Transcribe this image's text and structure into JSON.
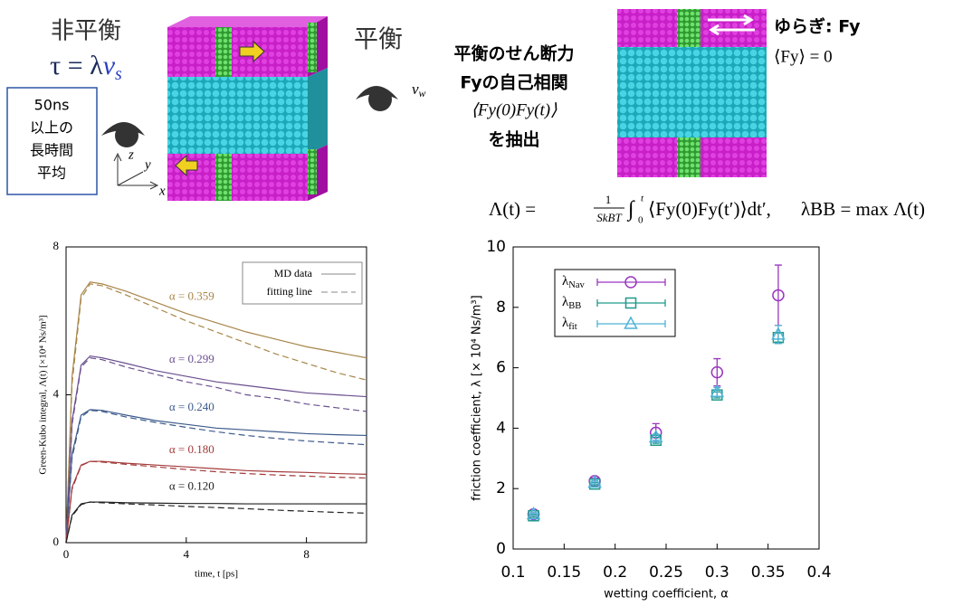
{
  "header": {
    "noneq": "非平衡",
    "tau": "τ = λ",
    "tau_v": "v",
    "tau_sub": "s",
    "box_lines": [
      "50ns",
      "以上の",
      "長時間",
      "平均"
    ],
    "axis_z": "z",
    "axis_y": "y",
    "axis_x": "x",
    "eq_label": "平衡",
    "steps": [
      "平衡のせん断力",
      "Fyの自己相関",
      "⟨Fy(0)Fy(t)⟩",
      "を抽出"
    ],
    "fluct": "ゆらぎ: Fy",
    "fluct_mean": "⟨Fy⟩ = 0",
    "formula_lhs": "Λ(t) =",
    "formula_num": "1",
    "formula_den": "SkBT",
    "formula_int": "∫",
    "formula_lower": "0",
    "formula_upper": "t",
    "formula_body": "⟨Fy(0)Fy(t′)⟩dt′,",
    "formula_rhs": "λBB = max Λ(t)",
    "vw": "vw"
  },
  "chart_data": [
    {
      "type": "line",
      "xlabel": "time, t [ps]",
      "ylabel": "Green-Kubo integral, Λ(t) [×10⁴ Ns/m³]",
      "xlim": [
        0,
        10
      ],
      "ylim": [
        0,
        8
      ],
      "xticks": [
        0,
        4,
        8
      ],
      "yticks": [
        0,
        4,
        8
      ],
      "legend": [
        {
          "label": "MD data",
          "style": "solid"
        },
        {
          "label": "fitting line",
          "style": "dashed"
        }
      ],
      "legend_position": "upper right",
      "x": [
        0,
        0.2,
        0.5,
        0.8,
        1.2,
        2,
        3,
        4,
        5,
        6,
        7,
        8,
        9,
        10
      ],
      "series": [
        {
          "label": "α = 0.359",
          "color": "#a8864a",
          "md": [
            0,
            4.5,
            6.7,
            7.05,
            7.0,
            6.8,
            6.5,
            6.2,
            5.95,
            5.7,
            5.5,
            5.3,
            5.15,
            5.0
          ],
          "fit": [
            0,
            4.3,
            6.6,
            7.0,
            6.95,
            6.7,
            6.35,
            6.0,
            5.7,
            5.4,
            5.1,
            4.85,
            4.6,
            4.4
          ]
        },
        {
          "label": "α = 0.299",
          "color": "#6a4f8e",
          "md": [
            0,
            3.3,
            4.8,
            5.05,
            5.0,
            4.85,
            4.65,
            4.5,
            4.35,
            4.25,
            4.15,
            4.05,
            4.0,
            3.95
          ],
          "fit": [
            0,
            3.2,
            4.75,
            5.0,
            4.95,
            4.75,
            4.55,
            4.35,
            4.2,
            4.0,
            3.9,
            3.75,
            3.65,
            3.55
          ]
        },
        {
          "label": "α = 0.240",
          "color": "#3d5a8c",
          "md": [
            0,
            2.4,
            3.45,
            3.6,
            3.58,
            3.45,
            3.3,
            3.2,
            3.1,
            3.05,
            3.0,
            2.95,
            2.92,
            2.9
          ],
          "fit": [
            0,
            2.3,
            3.4,
            3.58,
            3.55,
            3.4,
            3.25,
            3.12,
            3.0,
            2.9,
            2.82,
            2.75,
            2.7,
            2.65
          ]
        },
        {
          "label": "α = 0.180",
          "color": "#a33a3a",
          "md": [
            0,
            1.5,
            2.1,
            2.2,
            2.2,
            2.15,
            2.1,
            2.05,
            2.0,
            1.95,
            1.92,
            1.9,
            1.87,
            1.85
          ],
          "fit": [
            0,
            1.45,
            2.08,
            2.2,
            2.18,
            2.12,
            2.05,
            1.98,
            1.92,
            1.87,
            1.83,
            1.8,
            1.77,
            1.75
          ]
        },
        {
          "label": "α = 0.120",
          "color": "#222222",
          "md": [
            0,
            0.75,
            1.05,
            1.1,
            1.1,
            1.08,
            1.07,
            1.06,
            1.06,
            1.05,
            1.05,
            1.05,
            1.05,
            1.05
          ],
          "fit": [
            0,
            0.72,
            1.03,
            1.1,
            1.08,
            1.05,
            1.02,
            0.98,
            0.95,
            0.92,
            0.88,
            0.85,
            0.82,
            0.8
          ]
        }
      ]
    },
    {
      "type": "scatter",
      "xlabel": "wetting coefficient, α",
      "ylabel": "friction coefficient, λ [× 10⁴ Ns/m³]",
      "xlim": [
        0.1,
        0.4
      ],
      "ylim": [
        0,
        10
      ],
      "xticks": [
        0.1,
        0.15,
        0.2,
        0.25,
        0.3,
        0.35,
        0.4
      ],
      "yticks": [
        0,
        2,
        4,
        6,
        8,
        10
      ],
      "legend_position": "upper left",
      "x": [
        0.12,
        0.18,
        0.24,
        0.3,
        0.36
      ],
      "series": [
        {
          "name": "λNav",
          "color": "#9b35c0",
          "marker": "circle",
          "values": [
            1.15,
            2.25,
            3.85,
            5.85,
            8.4
          ],
          "errors": [
            0.05,
            0.1,
            0.3,
            0.45,
            1.0
          ]
        },
        {
          "name": "λBB",
          "color": "#1f9a8c",
          "marker": "square",
          "values": [
            1.1,
            2.15,
            3.6,
            5.1,
            7.0
          ],
          "errors": [
            0.05,
            0.05,
            0.1,
            0.1,
            0.15
          ]
        },
        {
          "name": "λfit",
          "color": "#4eb3d6",
          "marker": "triangle",
          "values": [
            1.15,
            2.2,
            3.7,
            5.2,
            7.1
          ],
          "errors": [
            0.05,
            0.05,
            0.1,
            0.15,
            0.3
          ]
        }
      ]
    }
  ]
}
